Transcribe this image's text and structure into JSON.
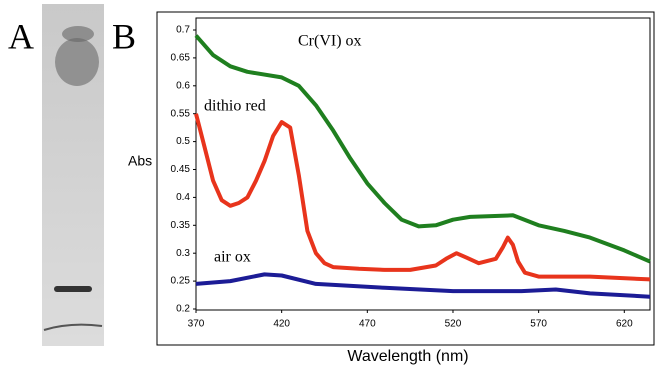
{
  "panel_labels": [
    "A",
    "B"
  ],
  "chart_data": {
    "type": "line",
    "y_label": "Abs",
    "x_label": "Wavelength (nm)",
    "xlim": [
      370,
      635
    ],
    "xticks": [
      370,
      420,
      470,
      520,
      570,
      620
    ],
    "ylim": [
      0.2,
      0.7
    ],
    "yticks": [
      0.2,
      0.25,
      0.3,
      0.35,
      0.4,
      0.45,
      0.5,
      0.55,
      0.6,
      0.65,
      0.7
    ],
    "series": [
      {
        "name": "Cr(VI) ox",
        "color": "#1f7f1f",
        "x": [
          370,
          380,
          390,
          400,
          420,
          430,
          440,
          450,
          460,
          470,
          480,
          490,
          500,
          510,
          520,
          530,
          555,
          570,
          585,
          600,
          620,
          635
        ],
        "values": [
          0.69,
          0.655,
          0.635,
          0.625,
          0.615,
          0.6,
          0.565,
          0.52,
          0.47,
          0.425,
          0.39,
          0.36,
          0.348,
          0.35,
          0.36,
          0.365,
          0.368,
          0.35,
          0.34,
          0.328,
          0.305,
          0.285
        ]
      },
      {
        "name": "dithio red",
        "color": "#e8341c",
        "x": [
          370,
          375,
          380,
          385,
          390,
          395,
          400,
          405,
          410,
          415,
          420,
          425,
          430,
          435,
          440,
          445,
          450,
          465,
          480,
          495,
          510,
          516,
          522,
          528,
          535,
          545,
          549,
          552,
          555,
          558,
          562,
          570,
          600,
          635
        ],
        "values": [
          0.55,
          0.49,
          0.43,
          0.395,
          0.385,
          0.39,
          0.4,
          0.43,
          0.465,
          0.51,
          0.535,
          0.525,
          0.44,
          0.34,
          0.3,
          0.282,
          0.275,
          0.272,
          0.27,
          0.27,
          0.278,
          0.29,
          0.3,
          0.292,
          0.282,
          0.29,
          0.31,
          0.328,
          0.315,
          0.285,
          0.265,
          0.258,
          0.258,
          0.253
        ]
      },
      {
        "name": "air ox",
        "color": "#1c1c96",
        "x": [
          370,
          390,
          410,
          420,
          440,
          480,
          520,
          560,
          580,
          600,
          635
        ],
        "values": [
          0.245,
          0.25,
          0.262,
          0.26,
          0.245,
          0.238,
          0.232,
          0.232,
          0.235,
          0.228,
          0.222
        ]
      }
    ]
  }
}
